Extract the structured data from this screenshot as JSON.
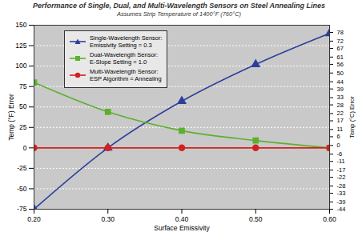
{
  "chart_data": {
    "type": "line",
    "title": "Performance of Single, Dual, and Multi-Wavelength Sensors on Steel Annealing Lines",
    "subtitle": "Assumes Strip Temperature of 1400°F (760°C)",
    "xlabel": "Surface Emissivity",
    "ylabel": "Temp (°F) Error",
    "y2label": "Temp (°C) Error",
    "x": [
      0.2,
      0.3,
      0.4,
      0.5,
      0.6
    ],
    "series": [
      {
        "name": "Single-Wavelength Sensor:\nEmissivity Setting = 0.3",
        "color": "#2e3f9a",
        "marker": "triangle",
        "line_style": "solid",
        "values": [
          -75,
          0,
          57,
          102,
          140
        ]
      },
      {
        "name": "Dual-Wavelength Sensor:\nE-Slope Setting = 1.0",
        "color": "#5cb030",
        "marker": "square",
        "line_style": "solid",
        "values": [
          80,
          44,
          21,
          9,
          0
        ]
      },
      {
        "name": "Multi-Wavelength Sensor:\nESP Algorithm = Annealing",
        "color": "#d42020",
        "marker": "circle",
        "line_style": "solid",
        "values": [
          0,
          0,
          0,
          0,
          0
        ]
      }
    ],
    "xlim": [
      0.2,
      0.6
    ],
    "xticks": [
      {
        "value": 0.2,
        "label": "0.20"
      },
      {
        "value": 0.3,
        "label": "0.30"
      },
      {
        "value": 0.4,
        "label": "0.40"
      },
      {
        "value": 0.5,
        "label": "0.50"
      },
      {
        "value": 0.6,
        "label": "0.60"
      }
    ],
    "ylim": [
      -75,
      150
    ],
    "yticks": [
      -75,
      -50,
      -25,
      0,
      25,
      50,
      75,
      100,
      125,
      150
    ],
    "y2lim": [
      -44,
      83
    ],
    "y2ticks": [
      -44,
      -39,
      -33,
      -28,
      -22,
      -17,
      -11,
      -6,
      0,
      6,
      11,
      17,
      22,
      28,
      33,
      39,
      44,
      50,
      56,
      61,
      67,
      72,
      78
    ],
    "grid": true,
    "legend": "top-left"
  }
}
